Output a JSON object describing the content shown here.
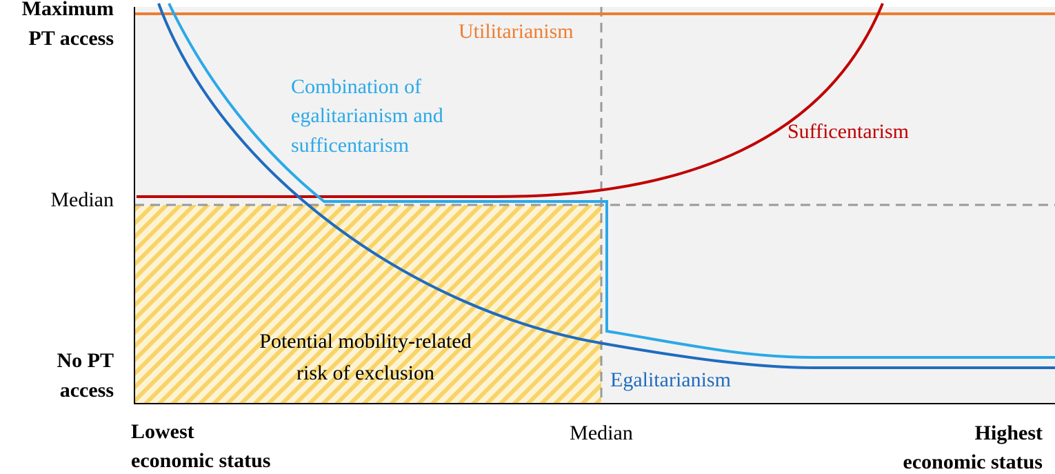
{
  "y_axis": {
    "top_label": [
      "Maximum",
      "PT access"
    ],
    "middle_label": "Median",
    "bottom_label": [
      "No PT",
      "access"
    ]
  },
  "x_axis": {
    "left_label": [
      "Lowest",
      "economic status"
    ],
    "middle_label": "Median",
    "right_label": [
      "Highest",
      "economic status"
    ]
  },
  "curves": {
    "utilitarianism": "Utilitarianism",
    "combination": [
      "Combination of",
      "egalitarianism and",
      "sufficentarism"
    ],
    "sufficentarianism": "Sufficentarism",
    "egalitarianism": "Egalitarianism"
  },
  "region": {
    "label": [
      "Potential mobility-related",
      "risk of exclusion"
    ]
  }
}
